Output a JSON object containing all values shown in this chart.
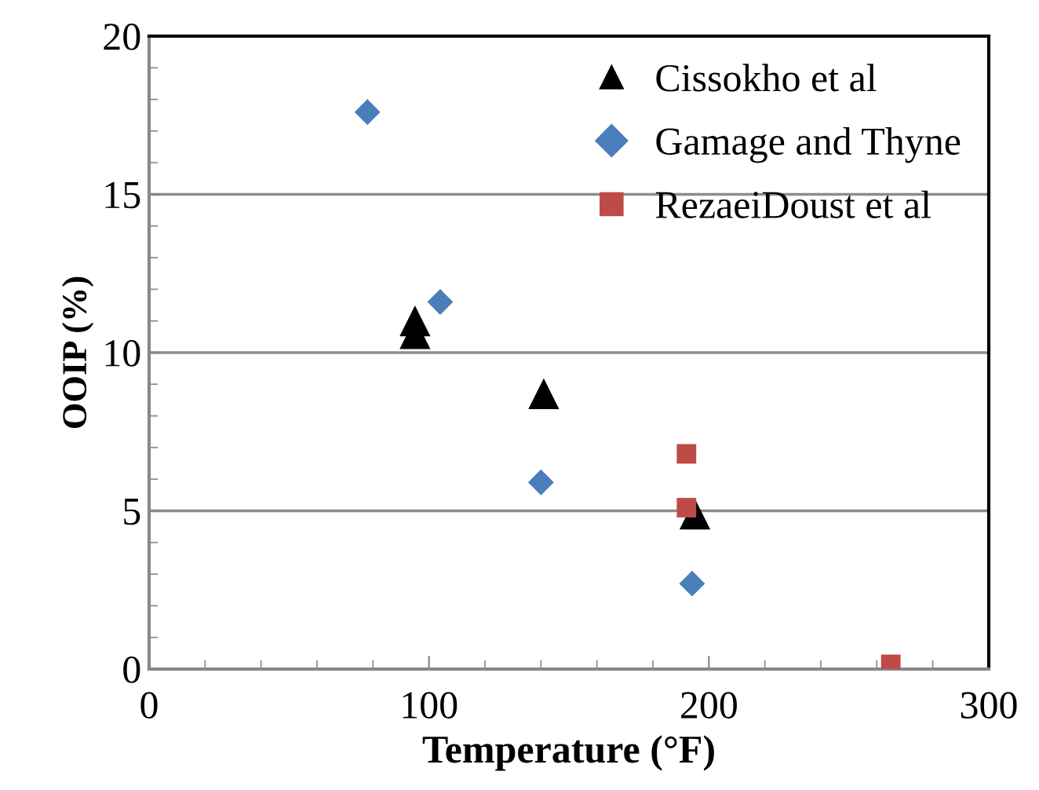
{
  "chart_data": {
    "type": "scatter",
    "xlabel": "Temperature (°F)",
    "ylabel": "OOIP (%)",
    "xlim": [
      0,
      300
    ],
    "ylim": [
      0,
      20
    ],
    "xticks": [
      0,
      {
        "value": 20,
        "label": null
      },
      {
        "value": 40,
        "label": null
      },
      {
        "value": 60,
        "label": null
      },
      {
        "value": 80,
        "label": null
      },
      100,
      {
        "value": 120,
        "label": null
      },
      {
        "value": 140,
        "label": null
      },
      {
        "value": 160,
        "label": null
      },
      {
        "value": 180,
        "label": null
      },
      200,
      {
        "value": 220,
        "label": null
      },
      {
        "value": 240,
        "label": null
      },
      {
        "value": 260,
        "label": null
      },
      {
        "value": 280,
        "label": null
      },
      300
    ],
    "yticks": [
      0,
      {
        "value": 1,
        "label": null
      },
      {
        "value": 2,
        "label": null
      },
      {
        "value": 3,
        "label": null
      },
      {
        "value": 4,
        "label": null
      },
      5,
      {
        "value": 6,
        "label": null
      },
      {
        "value": 7,
        "label": null
      },
      {
        "value": 8,
        "label": null
      },
      {
        "value": 9,
        "label": null
      },
      10,
      {
        "value": 11,
        "label": null
      },
      {
        "value": 12,
        "label": null
      },
      {
        "value": 13,
        "label": null
      },
      {
        "value": 14,
        "label": null
      },
      15,
      {
        "value": 16,
        "label": null
      },
      {
        "value": 17,
        "label": null
      },
      {
        "value": 18,
        "label": null
      },
      {
        "value": 19,
        "label": null
      },
      20
    ],
    "grid": "y",
    "legend": "top right",
    "series": [
      {
        "name": "Cissokho et al",
        "color": "#000000",
        "marker": "triangle",
        "x": [
          95,
          95,
          141,
          195
        ],
        "values": [
          10.6,
          11.0,
          8.7,
          4.9
        ]
      },
      {
        "name": "Gamage and Thyne",
        "color": "#4a7ebb",
        "marker": "diamond",
        "x": [
          78,
          104,
          140,
          194
        ],
        "values": [
          17.6,
          11.6,
          5.9,
          2.7
        ]
      },
      {
        "name": "RezaeiDoust et al",
        "color": "#be4b48",
        "marker": "square",
        "x": [
          192,
          192,
          265
        ],
        "values": [
          6.8,
          5.1,
          0.15
        ]
      }
    ]
  }
}
